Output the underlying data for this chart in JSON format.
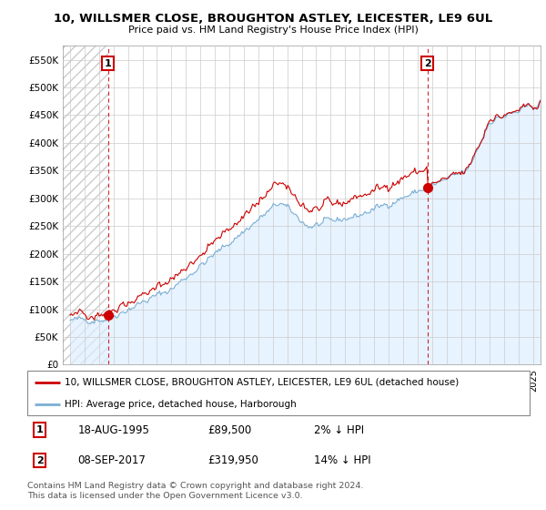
{
  "title": "10, WILLSMER CLOSE, BROUGHTON ASTLEY, LEICESTER, LE9 6UL",
  "subtitle": "Price paid vs. HM Land Registry's House Price Index (HPI)",
  "legend_line1": "10, WILLSMER CLOSE, BROUGHTON ASTLEY, LEICESTER, LE9 6UL (detached house)",
  "legend_line2": "HPI: Average price, detached house, Harborough",
  "ann1_num": "1",
  "ann1_date": "18-AUG-1995",
  "ann1_price": "£89,500",
  "ann1_pct": "2% ↓ HPI",
  "ann2_num": "2",
  "ann2_date": "08-SEP-2017",
  "ann2_price": "£319,950",
  "ann2_pct": "14% ↓ HPI",
  "footer": "Contains HM Land Registry data © Crown copyright and database right 2024.\nThis data is licensed under the Open Government Licence v3.0.",
  "ylim": [
    0,
    575000
  ],
  "yticks": [
    0,
    50000,
    100000,
    150000,
    200000,
    250000,
    300000,
    350000,
    400000,
    450000,
    500000,
    550000
  ],
  "ytick_labels": [
    "£0",
    "£50K",
    "£100K",
    "£150K",
    "£200K",
    "£250K",
    "£300K",
    "£350K",
    "£400K",
    "£450K",
    "£500K",
    "£550K"
  ],
  "xlim_start": 1992.5,
  "xlim_end": 2025.5,
  "hpi_color": "#7aafd4",
  "price_color": "#cc0000",
  "bg_hatch_color": "#cccccc",
  "bg_fill_color": "#ddeeff",
  "sale1_year": 1995.63,
  "sale1_price": 89500,
  "sale2_year": 2017.69,
  "sale2_price": 319950,
  "seed": 42
}
